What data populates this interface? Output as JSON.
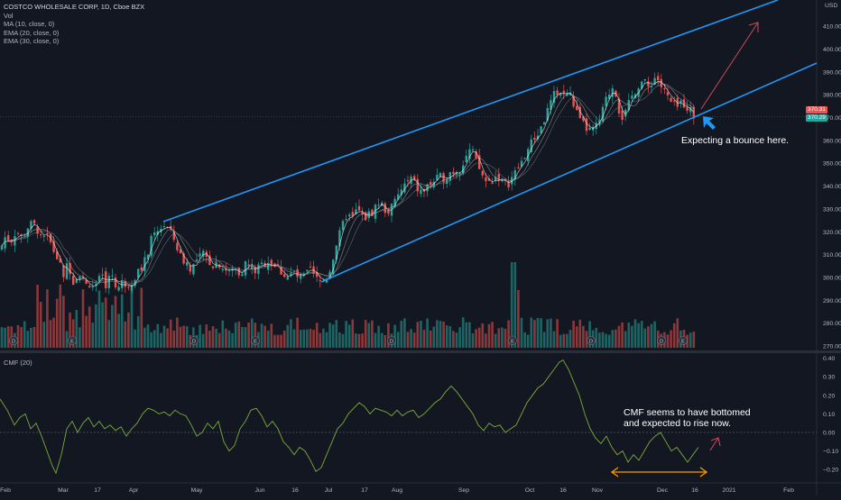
{
  "header": {
    "title": "COSTCO WHOLESALE CORP, 1D, Cboe BZX",
    "indicators": [
      "Vol",
      "MA (10, close, 0)",
      "EMA (20, close, 0)",
      "EMA (30, close, 0)"
    ]
  },
  "lower_pane": {
    "label": "CMF (20)"
  },
  "annotations": {
    "bounce": "Expecting a bounce here.",
    "cmf_line1": "CMF seems to have bottomed",
    "cmf_line2": "and expected to rise now."
  },
  "price_tags": [
    {
      "value": "370.31",
      "color": "#ef5350"
    },
    {
      "value": "370.29",
      "color": "#26a69a"
    }
  ],
  "colors": {
    "background": "#131722",
    "up": "#26a69a",
    "down": "#ef5350",
    "channel": "#2196f3",
    "arrow": "#c2485a",
    "cmf": "#7caa3c",
    "range_arrow": "#ff9800",
    "ma": "#ffffff"
  },
  "x_axis_labels": [
    "Feb",
    "Mar",
    "17",
    "Apr",
    "May",
    "Jun",
    "16",
    "Jul",
    "17",
    "Aug",
    "Sep",
    "Oct",
    "16",
    "Nov",
    "Dec",
    "16",
    "2021",
    "Feb"
  ],
  "chart_data": [
    {
      "type": "candlestick",
      "title": "COSTCO WHOLESALE CORP, 1D, Cboe BZX",
      "y_ticks": [
        270,
        280,
        290,
        300,
        310,
        320,
        330,
        340,
        350,
        360,
        370,
        380,
        390,
        400,
        410
      ],
      "y_unit": "USD",
      "ylim": [
        268,
        420
      ],
      "close_path": [
        [
          0,
          312
        ],
        [
          6,
          318
        ],
        [
          12,
          316
        ],
        [
          18,
          321
        ],
        [
          24,
          317
        ],
        [
          30,
          322
        ],
        [
          36,
          323
        ],
        [
          42,
          321
        ],
        [
          46,
          319
        ],
        [
          52,
          318
        ],
        [
          58,
          313
        ],
        [
          64,
          308
        ],
        [
          70,
          301
        ],
        [
          76,
          306
        ],
        [
          82,
          298
        ],
        [
          88,
          303
        ],
        [
          94,
          296
        ],
        [
          100,
          298
        ],
        [
          106,
          295
        ],
        [
          112,
          300
        ],
        [
          118,
          297
        ],
        [
          124,
          302
        ],
        [
          130,
          295
        ],
        [
          136,
          298
        ],
        [
          142,
          297
        ],
        [
          148,
          300
        ],
        [
          154,
          303
        ],
        [
          160,
          306
        ],
        [
          166,
          315
        ],
        [
          172,
          318
        ],
        [
          178,
          322
        ],
        [
          182,
          323
        ],
        [
          188,
          320
        ],
        [
          194,
          316
        ],
        [
          200,
          309
        ],
        [
          206,
          307
        ],
        [
          212,
          304
        ],
        [
          218,
          307
        ],
        [
          224,
          310
        ],
        [
          230,
          308
        ],
        [
          236,
          306
        ],
        [
          242,
          307
        ],
        [
          248,
          304
        ],
        [
          254,
          302
        ],
        [
          260,
          304
        ],
        [
          266,
          302
        ],
        [
          272,
          306
        ],
        [
          278,
          304
        ],
        [
          284,
          303
        ],
        [
          290,
          305
        ],
        [
          296,
          308
        ],
        [
          302,
          306
        ],
        [
          308,
          304
        ],
        [
          314,
          302
        ],
        [
          320,
          300
        ],
        [
          326,
          302
        ],
        [
          332,
          299
        ],
        [
          338,
          300
        ],
        [
          344,
          303
        ],
        [
          350,
          299
        ],
        [
          354,
          298
        ],
        [
          360,
          299
        ],
        [
          366,
          304
        ],
        [
          372,
          314
        ],
        [
          378,
          320
        ],
        [
          384,
          328
        ],
        [
          390,
          325
        ],
        [
          396,
          330
        ],
        [
          402,
          326
        ],
        [
          408,
          327
        ],
        [
          414,
          330
        ],
        [
          420,
          333
        ],
        [
          426,
          330
        ],
        [
          432,
          329
        ],
        [
          438,
          333
        ],
        [
          444,
          338
        ],
        [
          450,
          341
        ],
        [
          456,
          343
        ],
        [
          462,
          339
        ],
        [
          468,
          337
        ],
        [
          474,
          340
        ],
        [
          480,
          342
        ],
        [
          486,
          343
        ],
        [
          492,
          344
        ],
        [
          498,
          346
        ],
        [
          504,
          347
        ],
        [
          510,
          348
        ],
        [
          516,
          353
        ],
        [
          522,
          356
        ],
        [
          528,
          350
        ],
        [
          534,
          345
        ],
        [
          540,
          341
        ],
        [
          546,
          343
        ],
        [
          552,
          345
        ],
        [
          558,
          340
        ],
        [
          564,
          342
        ],
        [
          570,
          345
        ],
        [
          576,
          349
        ],
        [
          582,
          354
        ],
        [
          588,
          358
        ],
        [
          594,
          362
        ],
        [
          600,
          366
        ],
        [
          606,
          372
        ],
        [
          612,
          378
        ],
        [
          618,
          382
        ],
        [
          624,
          380
        ],
        [
          630,
          381
        ],
        [
          636,
          376
        ],
        [
          642,
          368
        ],
        [
          648,
          366
        ],
        [
          654,
          364
        ],
        [
          660,
          365
        ],
        [
          666,
          370
        ],
        [
          672,
          378
        ],
        [
          678,
          384
        ],
        [
          682,
          382
        ],
        [
          688,
          370
        ],
        [
          694,
          372
        ],
        [
          700,
          379
        ],
        [
          706,
          384
        ],
        [
          712,
          386
        ],
        [
          718,
          383
        ],
        [
          724,
          387
        ],
        [
          728,
          388
        ],
        [
          732,
          384
        ],
        [
          738,
          380
        ],
        [
          744,
          376
        ],
        [
          750,
          374
        ],
        [
          756,
          377
        ],
        [
          762,
          375
        ],
        [
          768,
          371
        ],
        [
          771,
          370.3
        ]
      ]
    },
    {
      "type": "bar",
      "title": "Vol",
      "description_values": "relative volume by day; a tall spike near Sep"
    },
    {
      "type": "line",
      "title": "CMF (20)",
      "y_ticks": [
        -0.2,
        -0.1,
        0.0,
        0.1,
        0.2,
        0.3,
        0.4
      ],
      "ylim": [
        -0.25,
        0.42
      ],
      "series": [
        {
          "points": [
            [
              0,
              0.18
            ],
            [
              8,
              0.12
            ],
            [
              16,
              0.04
            ],
            [
              22,
              0.08
            ],
            [
              28,
              0.1
            ],
            [
              34,
              0.02
            ],
            [
              40,
              0.05
            ],
            [
              46,
              -0.02
            ],
            [
              52,
              -0.1
            ],
            [
              58,
              -0.18
            ],
            [
              62,
              -0.22
            ],
            [
              68,
              -0.12
            ],
            [
              74,
              0.02
            ],
            [
              80,
              0.06
            ],
            [
              86,
              0.0
            ],
            [
              92,
              0.05
            ],
            [
              98,
              0.08
            ],
            [
              104,
              0.03
            ],
            [
              110,
              0.06
            ],
            [
              116,
              0.02
            ],
            [
              122,
              0.04
            ],
            [
              128,
              0.01
            ],
            [
              134,
              0.03
            ],
            [
              140,
              -0.02
            ],
            [
              146,
              0.02
            ],
            [
              152,
              0.05
            ],
            [
              158,
              0.1
            ],
            [
              164,
              0.13
            ],
            [
              170,
              0.12
            ],
            [
              176,
              0.1
            ],
            [
              182,
              0.11
            ],
            [
              188,
              0.09
            ],
            [
              194,
              0.12
            ],
            [
              200,
              0.1
            ],
            [
              206,
              0.09
            ],
            [
              212,
              0.04
            ],
            [
              218,
              -0.02
            ],
            [
              224,
              0.0
            ],
            [
              230,
              0.05
            ],
            [
              236,
              0.02
            ],
            [
              242,
              0.06
            ],
            [
              248,
              -0.05
            ],
            [
              254,
              -0.1
            ],
            [
              260,
              -0.07
            ],
            [
              266,
              0.02
            ],
            [
              272,
              0.06
            ],
            [
              278,
              0.12
            ],
            [
              284,
              0.13
            ],
            [
              290,
              0.09
            ],
            [
              296,
              0.03
            ],
            [
              302,
              0.06
            ],
            [
              308,
              0.02
            ],
            [
              314,
              -0.05
            ],
            [
              320,
              -0.08
            ],
            [
              326,
              -0.12
            ],
            [
              332,
              -0.08
            ],
            [
              338,
              -0.1
            ],
            [
              344,
              -0.15
            ],
            [
              350,
              -0.21
            ],
            [
              356,
              -0.19
            ],
            [
              362,
              -0.12
            ],
            [
              368,
              -0.05
            ],
            [
              374,
              0.02
            ],
            [
              380,
              0.05
            ],
            [
              386,
              0.1
            ],
            [
              392,
              0.13
            ],
            [
              398,
              0.16
            ],
            [
              404,
              0.14
            ],
            [
              410,
              0.1
            ],
            [
              416,
              0.13
            ],
            [
              422,
              0.12
            ],
            [
              428,
              0.11
            ],
            [
              434,
              0.09
            ],
            [
              440,
              0.12
            ],
            [
              446,
              0.09
            ],
            [
              452,
              0.11
            ],
            [
              458,
              0.12
            ],
            [
              464,
              0.08
            ],
            [
              470,
              0.1
            ],
            [
              476,
              0.13
            ],
            [
              482,
              0.16
            ],
            [
              488,
              0.18
            ],
            [
              494,
              0.22
            ],
            [
              500,
              0.25
            ],
            [
              506,
              0.22
            ],
            [
              512,
              0.18
            ],
            [
              518,
              0.14
            ],
            [
              524,
              0.1
            ],
            [
              530,
              0.04
            ],
            [
              536,
              0.01
            ],
            [
              542,
              0.05
            ],
            [
              548,
              0.03
            ],
            [
              554,
              0.04
            ],
            [
              560,
              0.0
            ],
            [
              566,
              0.02
            ],
            [
              572,
              0.04
            ],
            [
              578,
              0.1
            ],
            [
              584,
              0.16
            ],
            [
              590,
              0.2
            ],
            [
              596,
              0.24
            ],
            [
              602,
              0.26
            ],
            [
              608,
              0.3
            ],
            [
              614,
              0.34
            ],
            [
              620,
              0.38
            ],
            [
              624,
              0.39
            ],
            [
              630,
              0.34
            ],
            [
              636,
              0.27
            ],
            [
              642,
              0.2
            ],
            [
              648,
              0.1
            ],
            [
              654,
              0.02
            ],
            [
              660,
              -0.03
            ],
            [
              666,
              -0.06
            ],
            [
              672,
              -0.02
            ],
            [
              678,
              -0.08
            ],
            [
              684,
              -0.12
            ],
            [
              690,
              -0.1
            ],
            [
              696,
              -0.16
            ],
            [
              702,
              -0.12
            ],
            [
              708,
              -0.15
            ],
            [
              714,
              -0.1
            ],
            [
              720,
              -0.05
            ],
            [
              726,
              -0.02
            ],
            [
              732,
              0.0
            ],
            [
              738,
              -0.05
            ],
            [
              744,
              -0.1
            ],
            [
              750,
              -0.08
            ],
            [
              756,
              -0.12
            ],
            [
              762,
              -0.16
            ],
            [
              768,
              -0.12
            ],
            [
              774,
              -0.08
            ]
          ]
        }
      ]
    }
  ]
}
